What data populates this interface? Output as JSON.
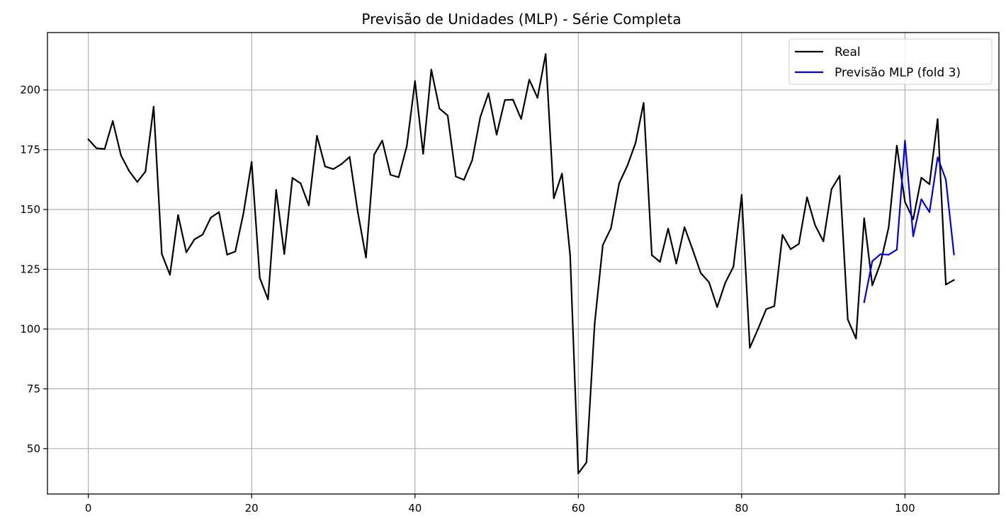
{
  "chart_data": {
    "type": "line",
    "title": "Previsão de Unidades (MLP) - Série Completa",
    "xlabel": "",
    "ylabel": "",
    "xlim": [
      -5,
      111.5
    ],
    "ylim": [
      31,
      224
    ],
    "x_ticks": [
      0,
      20,
      40,
      60,
      80,
      100
    ],
    "y_ticks": [
      50,
      75,
      100,
      125,
      150,
      175,
      200
    ],
    "grid": true,
    "legend_position": "top-right",
    "series": [
      {
        "name": "Real",
        "color": "#000000",
        "x_start": 0,
        "values": [
          179.4,
          175.6,
          175.3,
          187.0,
          172.6,
          166.1,
          161.5,
          165.9,
          193.0,
          131.4,
          122.7,
          147.7,
          132.1,
          137.5,
          139.5,
          146.6,
          148.9,
          131.1,
          132.4,
          148.5,
          169.9,
          121.4,
          112.4,
          158.2,
          131.4,
          163.2,
          160.9,
          151.7,
          180.8,
          168.0,
          166.9,
          169.0,
          172.0,
          148.8,
          129.9,
          172.9,
          178.8,
          164.5,
          163.5,
          176.5,
          203.7,
          173.3,
          208.5,
          192.2,
          189.3,
          163.8,
          162.4,
          170.6,
          188.7,
          198.6,
          181.3,
          195.8,
          195.9,
          187.9,
          204.3,
          196.7,
          215.0,
          154.7,
          165.0,
          130.8,
          39.6,
          44.2,
          102.3,
          135.1,
          142.2,
          161.0,
          168.3,
          177.7,
          194.6,
          130.9,
          128.1,
          142.0,
          127.4,
          142.6,
          133.2,
          123.4,
          119.6,
          109.2,
          119.4,
          126.1,
          156.1,
          92.2,
          100.0,
          108.3,
          109.6,
          139.4,
          133.4,
          135.6,
          155.1,
          143.4,
          136.7,
          158.5,
          164.1,
          104.0,
          96.0,
          146.3,
          118.3,
          127.5,
          142.5,
          176.7,
          153.2,
          145.9,
          163.3,
          160.6,
          187.8,
          118.6,
          120.5
        ]
      },
      {
        "name": "Previsão MLP (fold 3)",
        "color": "#0000ee",
        "x_start": 95,
        "values": [
          111.2,
          128.4,
          131.3,
          131.1,
          133.2,
          178.8,
          138.8,
          154.3,
          148.9,
          171.8,
          162.5,
          131.1
        ]
      }
    ]
  }
}
